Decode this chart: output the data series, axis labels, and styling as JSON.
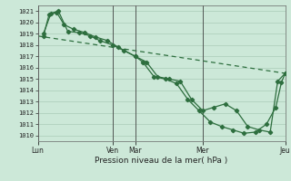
{
  "xlabel": "Pression niveau de la mer( hPa )",
  "ylim": [
    1009.5,
    1021.5
  ],
  "yticks": [
    1010,
    1011,
    1012,
    1013,
    1014,
    1015,
    1016,
    1017,
    1018,
    1019,
    1020,
    1021
  ],
  "bg_color": "#cce8d8",
  "grid_color": "#aaccb8",
  "line_color": "#2d6e3e",
  "day_labels": [
    "Lun",
    "Ven",
    "Mar",
    "Mer",
    "Jeu"
  ],
  "day_positions": [
    0,
    40,
    52,
    88,
    132
  ],
  "xlim": [
    0,
    132
  ],
  "line_dashed": {
    "x": [
      0,
      132
    ],
    "y": [
      1018.8,
      1015.5
    ]
  },
  "line1": {
    "x": [
      3,
      7,
      11,
      16,
      22,
      28,
      33,
      40,
      46,
      52,
      58,
      64,
      70,
      76,
      82,
      88,
      94,
      100,
      106,
      112,
      118,
      124,
      128,
      132
    ],
    "y": [
      1019.0,
      1020.8,
      1021.0,
      1019.2,
      1019.1,
      1018.8,
      1018.4,
      1018.0,
      1017.5,
      1017.0,
      1016.5,
      1015.2,
      1015.0,
      1014.8,
      1013.2,
      1012.2,
      1012.5,
      1012.8,
      1012.2,
      1010.8,
      1010.5,
      1010.3,
      1014.8,
      1015.5
    ]
  },
  "line2": {
    "x": [
      3,
      6,
      10,
      14,
      19,
      25,
      31,
      37,
      43,
      52,
      56,
      62,
      68,
      74,
      80,
      86,
      92,
      98,
      104,
      110,
      116,
      122,
      127,
      130,
      132
    ],
    "y": [
      1018.8,
      1020.7,
      1020.9,
      1019.8,
      1019.4,
      1019.1,
      1018.7,
      1018.4,
      1017.8,
      1017.0,
      1016.5,
      1015.2,
      1015.0,
      1014.6,
      1013.2,
      1012.2,
      1011.2,
      1010.8,
      1010.5,
      1010.2,
      1010.3,
      1011.0,
      1012.5,
      1014.7,
      1015.5
    ]
  }
}
